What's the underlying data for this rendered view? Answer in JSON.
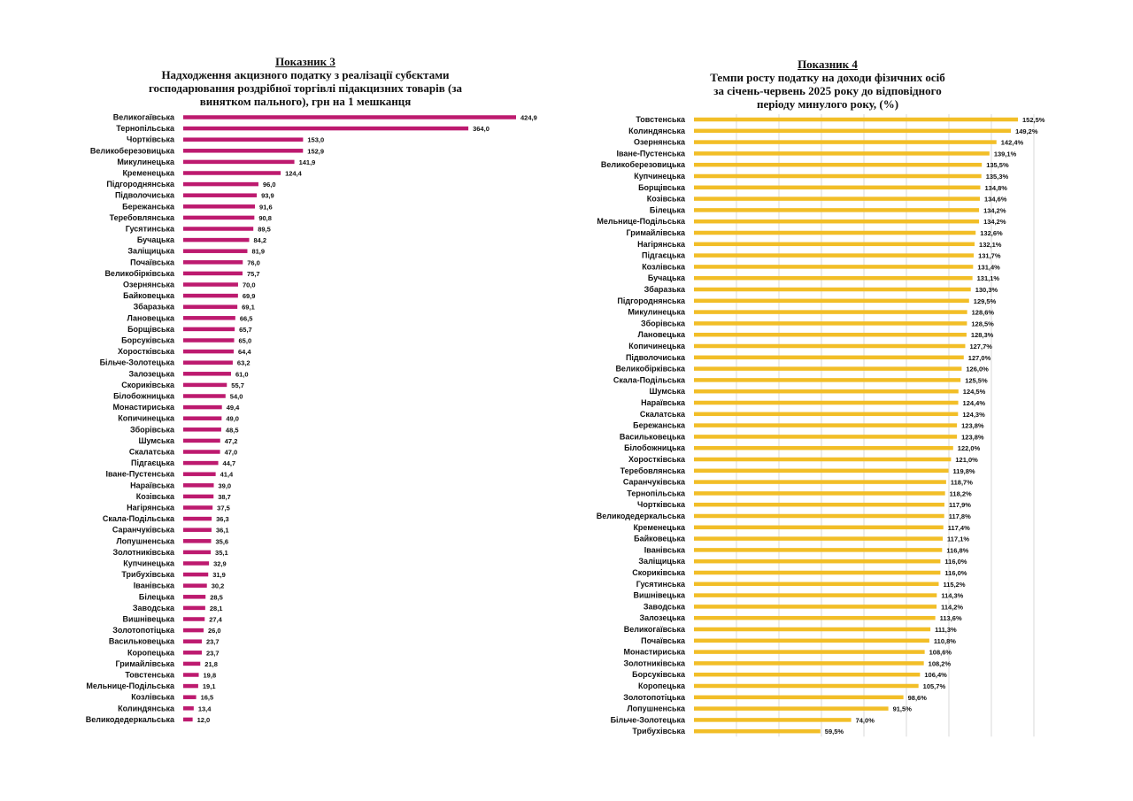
{
  "chart_data": [
    {
      "type": "bar",
      "orientation": "horizontal",
      "caption": "Показник 3",
      "title_lines": [
        "Надходження  акцизного податку з реалізації субєктами",
        "господарювання  роздрібної торгівлі підакцизних товарів (за",
        "винятком пального), грн на 1 мешканця"
      ],
      "color": "#bd1a6f",
      "xlim": [
        0,
        450
      ],
      "categories": [
        "Великогаївська",
        "Тернопільська",
        "Чортківська",
        "Великоберезовицька",
        "Микулинецька",
        "Кременецька",
        "Підгороднянська",
        "Підволочиська",
        "Бережанська",
        "Теребовлянська",
        "Гусятинська",
        "Бучацька",
        "Заліщицька",
        "Почаївська",
        "Великобірківська",
        "Озернянська",
        "Байковецька",
        "Збаразька",
        "Лановецька",
        "Борщівська",
        "Борсуківська",
        "Хоростківська",
        "Більче-Золотецька",
        "Залозецька",
        "Скориківська",
        "Білобожницька",
        "Монастириська",
        "Копичинецька",
        "Зборівська",
        "Шумська",
        "Скалатська",
        "Підгаєцька",
        "Іване-Пустенська",
        "Нараївська",
        "Козівська",
        "Нагірянська",
        "Скала-Подільська",
        "Саранчуківська",
        "Лопушненська",
        "Золотниківська",
        "Купчинецька",
        "Трибухівська",
        "Іванівська",
        "Білецька",
        "Заводська",
        "Вишнівецька",
        "Золотопотіцька",
        "Васильковецька",
        "Коропецька",
        "Гримайлівська",
        "Товстенська",
        "Мельнице-Подільська",
        "Козлівська",
        "Колиндянська",
        "Великодедеркальська"
      ],
      "values": [
        424.9,
        364.0,
        153.0,
        152.9,
        141.9,
        124.4,
        96.0,
        93.9,
        91.6,
        90.8,
        89.5,
        84.2,
        81.9,
        76.0,
        75.7,
        70.0,
        69.9,
        69.1,
        66.5,
        65.7,
        65.0,
        64.4,
        63.2,
        61.0,
        55.7,
        54.0,
        49.4,
        49.0,
        48.5,
        47.2,
        47.0,
        44.7,
        41.4,
        39.0,
        38.7,
        37.5,
        36.3,
        36.1,
        35.6,
        35.1,
        32.9,
        31.9,
        30.2,
        28.5,
        28.1,
        27.4,
        26.0,
        23.7,
        23.7,
        21.8,
        19.8,
        19.1,
        16.5,
        13.4,
        12.0
      ],
      "value_labels": [
        "424,9",
        "364,0",
        "153,0",
        "152,9",
        "141,9",
        "124,4",
        "96,0",
        "93,9",
        "91,6",
        "90,8",
        "89,5",
        "84,2",
        "81,9",
        "76,0",
        "75,7",
        "70,0",
        "69,9",
        "69,1",
        "66,5",
        "65,7",
        "65,0",
        "64,4",
        "63,2",
        "61,0",
        "55,7",
        "54,0",
        "49,4",
        "49,0",
        "48,5",
        "47,2",
        "47,0",
        "44,7",
        "41,4",
        "39,0",
        "38,7",
        "37,5",
        "36,3",
        "36,1",
        "35,6",
        "35,1",
        "32,9",
        "31,9",
        "30,2",
        "28,5",
        "28,1",
        "27,4",
        "26,0",
        "23,7",
        "23,7",
        "21,8",
        "19,8",
        "19,1",
        "16,5",
        "13,4",
        "12,0"
      ]
    },
    {
      "type": "bar",
      "orientation": "horizontal",
      "caption": "Показник 4",
      "title_lines": [
        "Темпи росту податку на доходи фізичних осіб",
        "за січень-червень 2025 року до відповідного",
        "періоду минулого року, (%)"
      ],
      "color": "#f2be27",
      "grid_color": "#d9d9d9",
      "xlim": [
        0,
        160
      ],
      "gridlines": [
        20,
        40,
        60,
        80,
        100,
        120,
        140,
        160
      ],
      "categories": [
        "Товстенська",
        "Колиндянська",
        "Озернянська",
        "Іване-Пустенська",
        "Великоберезовицька",
        "Купчинецька",
        "Борщівська",
        "Козівська",
        "Білецька",
        "Мельнице-Подільська",
        "Гримайлівська",
        "Нагірянська",
        "Підгаєцька",
        "Козлівська",
        "Бучацька",
        "Збаразька",
        "Підгороднянська",
        "Микулинецька",
        "Зборівська",
        "Лановецька",
        "Копичинецька",
        "Підволочиська",
        "Великобірківська",
        "Скала-Подільська",
        "Шумська",
        "Нараївська",
        "Скалатська",
        "Бережанська",
        "Васильковецька",
        "Білобожницька",
        "Хоростківська",
        "Теребовлянська",
        "Саранчуківська",
        "Тернопільська",
        "Чортківська",
        "Великодедеркальська",
        "Кременецька",
        "Байковецька",
        "Іванівська",
        "Заліщицька",
        "Скориківська",
        "Гусятинська",
        "Вишнівецька",
        "Заводська",
        "Залозецька",
        "Великогаївська",
        "Почаївська",
        "Монастириська",
        "Золотниківська",
        "Борсуківська",
        "Коропецька",
        "Золотопотіцька",
        "Лопушненська",
        "Більче-Золотецька",
        "Трибухівська"
      ],
      "values": [
        152.5,
        149.2,
        142.4,
        139.1,
        135.5,
        135.3,
        134.8,
        134.6,
        134.2,
        134.2,
        132.6,
        132.1,
        131.7,
        131.4,
        131.1,
        130.3,
        129.5,
        128.6,
        128.5,
        128.3,
        127.7,
        127.0,
        126.0,
        125.5,
        124.5,
        124.4,
        124.3,
        123.8,
        123.8,
        122.0,
        121.0,
        119.8,
        118.7,
        118.2,
        117.9,
        117.8,
        117.4,
        117.1,
        116.8,
        116.0,
        116.0,
        115.2,
        114.3,
        114.2,
        113.6,
        111.3,
        110.8,
        108.6,
        108.2,
        106.4,
        105.7,
        98.6,
        91.5,
        74.0,
        59.5
      ],
      "value_labels": [
        "152,5%",
        "149,2%",
        "142,4%",
        "139,1%",
        "135,5%",
        "135,3%",
        "134,8%",
        "134,6%",
        "134,2%",
        "134,2%",
        "132,6%",
        "132,1%",
        "131,7%",
        "131,4%",
        "131,1%",
        "130,3%",
        "129,5%",
        "128,6%",
        "128,5%",
        "128,3%",
        "127,7%",
        "127,0%",
        "126,0%",
        "125,5%",
        "124,5%",
        "124,4%",
        "124,3%",
        "123,8%",
        "123,8%",
        "122,0%",
        "121,0%",
        "119,8%",
        "118,7%",
        "118,2%",
        "117,9%",
        "117,8%",
        "117,4%",
        "117,1%",
        "116,8%",
        "116,0%",
        "116,0%",
        "115,2%",
        "114,3%",
        "114,2%",
        "113,6%",
        "111,3%",
        "110,8%",
        "108,6%",
        "108,2%",
        "106,4%",
        "105,7%",
        "98,6%",
        "91,5%",
        "74,0%",
        "59,5%"
      ]
    }
  ]
}
